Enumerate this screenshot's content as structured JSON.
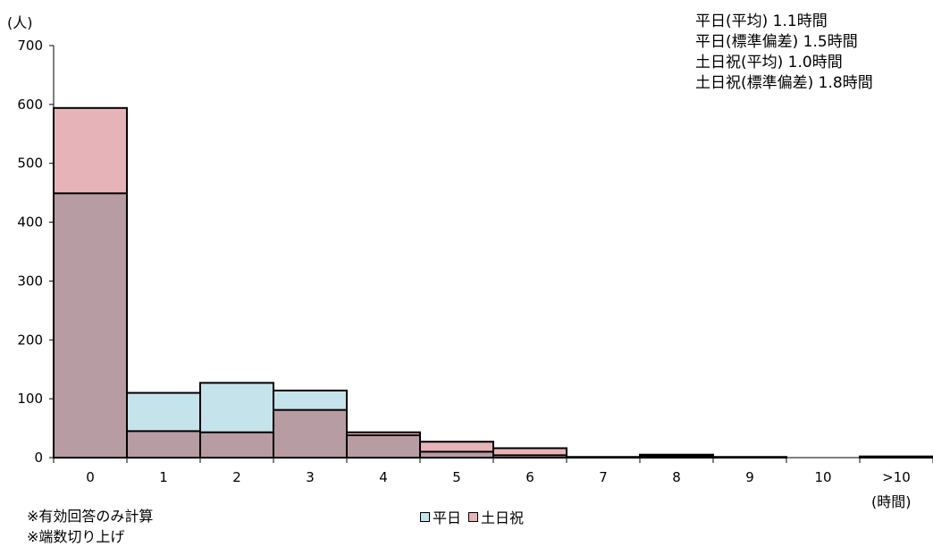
{
  "chart_data": {
    "type": "bar",
    "ylabel": "(人)",
    "xunit": "(時間)",
    "ylim": [
      0,
      700
    ],
    "yticks": [
      0,
      100,
      200,
      300,
      400,
      500,
      600,
      700
    ],
    "categories": [
      "0",
      "1",
      "2",
      "3",
      "4",
      "5",
      "6",
      "7",
      "8",
      "9",
      "10",
      ">10"
    ],
    "series": [
      {
        "name": "平日",
        "color": "#c5e3ea",
        "values": [
          449,
          110,
          127,
          114,
          38,
          10,
          4,
          1,
          3,
          1,
          0,
          1
        ]
      },
      {
        "name": "土日祝",
        "color": "#e6b4b8",
        "values": [
          594,
          45,
          43,
          81,
          43,
          27,
          16,
          1,
          5,
          1,
          0,
          2
        ]
      }
    ],
    "overlap_color": "#b89ca3",
    "grid": false
  },
  "stats": [
    "平日(平均) 1.1時間",
    "平日(標準偏差) 1.5時間",
    "土日祝(平均) 1.0時間",
    "土日祝(標準偏差) 1.8時間"
  ],
  "notes": [
    "※有効回答のみ計算",
    "※端数切り上げ"
  ],
  "legend": {
    "weekday": "平日",
    "holiday": "土日祝"
  }
}
